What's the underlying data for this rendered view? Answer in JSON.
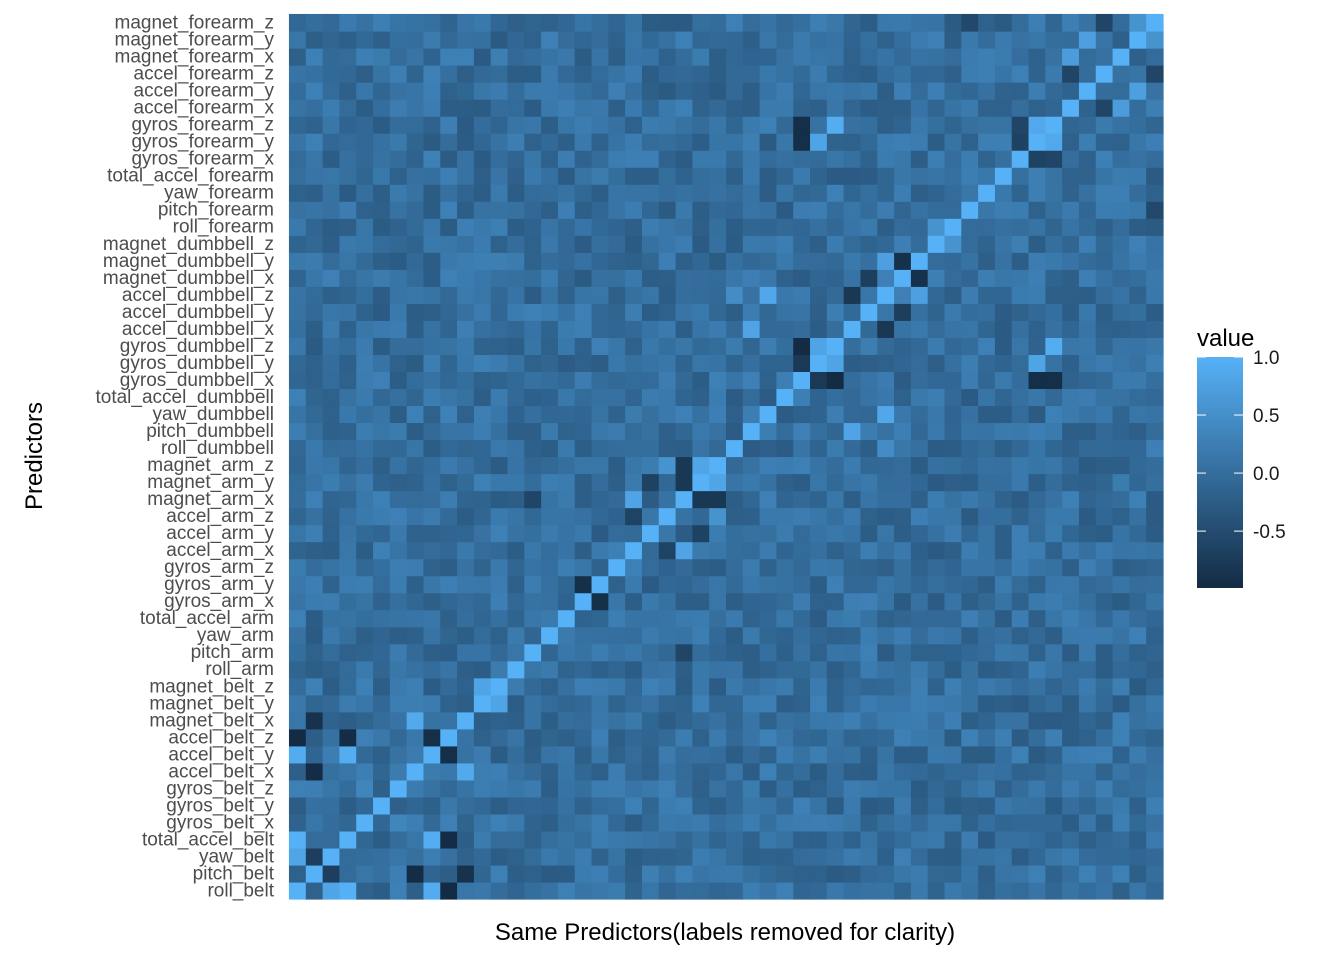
{
  "chart_data": {
    "type": "heatmap",
    "title": "",
    "xlabel": "Same Predictors(labels removed for clarity)",
    "ylabel": "Predictors",
    "x_tick_labels_shown": false,
    "predictors": [
      "roll_belt",
      "pitch_belt",
      "yaw_belt",
      "total_accel_belt",
      "gyros_belt_x",
      "gyros_belt_y",
      "gyros_belt_z",
      "accel_belt_x",
      "accel_belt_y",
      "accel_belt_z",
      "magnet_belt_x",
      "magnet_belt_y",
      "magnet_belt_z",
      "roll_arm",
      "pitch_arm",
      "yaw_arm",
      "total_accel_arm",
      "gyros_arm_x",
      "gyros_arm_y",
      "gyros_arm_z",
      "accel_arm_x",
      "accel_arm_y",
      "accel_arm_z",
      "magnet_arm_x",
      "magnet_arm_y",
      "magnet_arm_z",
      "roll_dumbbell",
      "pitch_dumbbell",
      "yaw_dumbbell",
      "total_accel_dumbbell",
      "gyros_dumbbell_x",
      "gyros_dumbbell_y",
      "gyros_dumbbell_z",
      "accel_dumbbell_x",
      "accel_dumbbell_y",
      "accel_dumbbell_z",
      "magnet_dumbbell_x",
      "magnet_dumbbell_y",
      "magnet_dumbbell_z",
      "roll_forearm",
      "pitch_forearm",
      "yaw_forearm",
      "total_accel_forearm",
      "gyros_forearm_x",
      "gyros_forearm_y",
      "gyros_forearm_z",
      "accel_forearm_x",
      "accel_forearm_y",
      "accel_forearm_z",
      "magnet_forearm_x",
      "magnet_forearm_y",
      "magnet_forearm_z"
    ],
    "legend": {
      "title": "value",
      "ticks": [
        "1.0",
        "0.5",
        "0.0",
        "-0.5"
      ],
      "tick_values": [
        1.0,
        0.5,
        0.0,
        -0.5
      ],
      "range": [
        -0.99,
        1.0
      ],
      "color_low": "#132B43",
      "color_high": "#56B1F7",
      "placement": "right"
    },
    "strong_correlations": [
      {
        "a": "roll_belt",
        "b": "total_accel_belt",
        "value": 0.98
      },
      {
        "a": "roll_belt",
        "b": "accel_belt_y",
        "value": 0.92
      },
      {
        "a": "roll_belt",
        "b": "accel_belt_z",
        "value": -0.99
      },
      {
        "a": "pitch_belt",
        "b": "accel_belt_x",
        "value": -0.97
      },
      {
        "a": "pitch_belt",
        "b": "magnet_belt_x",
        "value": -0.88
      },
      {
        "a": "yaw_belt",
        "b": "roll_belt",
        "value": 0.82
      },
      {
        "a": "yaw_belt",
        "b": "pitch_belt",
        "value": -0.7
      },
      {
        "a": "total_accel_belt",
        "b": "accel_belt_y",
        "value": 0.93
      },
      {
        "a": "total_accel_belt",
        "b": "accel_belt_z",
        "value": -0.97
      },
      {
        "a": "accel_belt_y",
        "b": "accel_belt_z",
        "value": -0.93
      },
      {
        "a": "accel_belt_x",
        "b": "magnet_belt_x",
        "value": 0.89
      },
      {
        "a": "gyros_belt_x",
        "b": "gyros_belt_z",
        "value": 0.34
      },
      {
        "a": "magnet_belt_y",
        "b": "magnet_belt_z",
        "value": 0.8
      },
      {
        "a": "gyros_arm_x",
        "b": "gyros_arm_y",
        "value": -0.92
      },
      {
        "a": "accel_arm_x",
        "b": "magnet_arm_x",
        "value": 0.81
      },
      {
        "a": "accel_arm_x",
        "b": "accel_arm_z",
        "value": -0.63
      },
      {
        "a": "accel_arm_y",
        "b": "magnet_arm_y",
        "value": -0.65
      },
      {
        "a": "accel_arm_z",
        "b": "magnet_arm_z",
        "value": 0.55
      },
      {
        "a": "magnet_arm_x",
        "b": "magnet_arm_y",
        "value": -0.8
      },
      {
        "a": "magnet_arm_x",
        "b": "magnet_arm_z",
        "value": -0.8
      },
      {
        "a": "magnet_arm_y",
        "b": "magnet_arm_z",
        "value": 0.82
      },
      {
        "a": "pitch_arm",
        "b": "magnet_arm_x",
        "value": -0.6
      },
      {
        "a": "yaw_dumbbell",
        "b": "accel_dumbbell_z",
        "value": 0.85
      },
      {
        "a": "roll_dumbbell",
        "b": "accel_dumbbell_z",
        "value": 0.45
      },
      {
        "a": "pitch_dumbbell",
        "b": "accel_dumbbell_x",
        "value": 0.81
      },
      {
        "a": "gyros_dumbbell_x",
        "b": "gyros_dumbbell_z",
        "value": -0.98
      },
      {
        "a": "gyros_dumbbell_x",
        "b": "gyros_dumbbell_y",
        "value": -0.78
      },
      {
        "a": "gyros_dumbbell_y",
        "b": "gyros_dumbbell_z",
        "value": 0.8
      },
      {
        "a": "accel_dumbbell_x",
        "b": "accel_dumbbell_z",
        "value": -0.8
      },
      {
        "a": "accel_dumbbell_y",
        "b": "magnet_dumbbell_x",
        "value": -0.7
      },
      {
        "a": "accel_dumbbell_z",
        "b": "magnet_dumbbell_y",
        "value": 0.74
      },
      {
        "a": "magnet_dumbbell_x",
        "b": "magnet_dumbbell_y",
        "value": -0.9
      },
      {
        "a": "gyros_dumbbell_x",
        "b": "gyros_forearm_y",
        "value": -0.93
      },
      {
        "a": "gyros_dumbbell_z",
        "b": "gyros_forearm_z",
        "value": 0.93
      },
      {
        "a": "gyros_dumbbell_x",
        "b": "gyros_forearm_z",
        "value": -0.93
      },
      {
        "a": "gyros_dumbbell_y",
        "b": "gyros_forearm_y",
        "value": 0.8
      },
      {
        "a": "gyros_forearm_y",
        "b": "gyros_forearm_z",
        "value": 0.87
      },
      {
        "a": "gyros_forearm_x",
        "b": "gyros_forearm_y",
        "value": -0.65
      },
      {
        "a": "gyros_forearm_x",
        "b": "gyros_forearm_z",
        "value": -0.6
      },
      {
        "a": "accel_forearm_x",
        "b": "magnet_forearm_x",
        "value": 0.69
      },
      {
        "a": "accel_forearm_y",
        "b": "magnet_forearm_y",
        "value": 0.73
      },
      {
        "a": "accel_forearm_z",
        "b": "magnet_forearm_z",
        "value": -0.6
      },
      {
        "a": "accel_forearm_x",
        "b": "accel_forearm_z",
        "value": -0.6
      },
      {
        "a": "magnet_forearm_y",
        "b": "magnet_forearm_z",
        "value": 0.55
      },
      {
        "a": "pitch_forearm",
        "b": "magnet_forearm_z",
        "value": -0.55
      },
      {
        "a": "roll_forearm",
        "b": "magnet_dumbbell_z",
        "value": 0.55
      }
    ],
    "other_correlations_note": "most remaining pairs near 0 (between about -0.3 and 0.3)"
  }
}
